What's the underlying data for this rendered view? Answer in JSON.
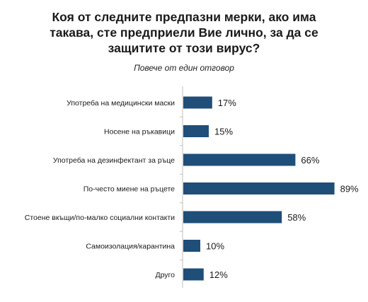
{
  "chart_data": {
    "type": "bar",
    "orientation": "horizontal",
    "title": "Коя от следните предпазни мерки, ако има такава, сте предприели Вие лично, за да се защитите от този вирус?",
    "title_lines": [
      "Коя от следните предпазни мерки, ако има",
      "такава, сте предприели Вие лично, за да се",
      "защитите от този вирус?"
    ],
    "subtitle": "Повече от един отговор",
    "categories": [
      "Употреба на медицински маски",
      "Носене на ръкавици",
      "Употреба на дезинфектант за ръце",
      "По-често миене на ръцете",
      "Стоене вкъщи/по-малко социални контакти",
      "Самоизолация/карантина",
      "Друго"
    ],
    "values": [
      17,
      15,
      66,
      89,
      58,
      10,
      12
    ],
    "value_labels": [
      "17%",
      "15%",
      "66%",
      "89%",
      "58%",
      "10%",
      "12%"
    ],
    "xlim": [
      0,
      100
    ],
    "unit": "%",
    "bar_color": "#1f4e79",
    "axis_color": "#bfbfbf",
    "grid": false,
    "legend": "none"
  }
}
